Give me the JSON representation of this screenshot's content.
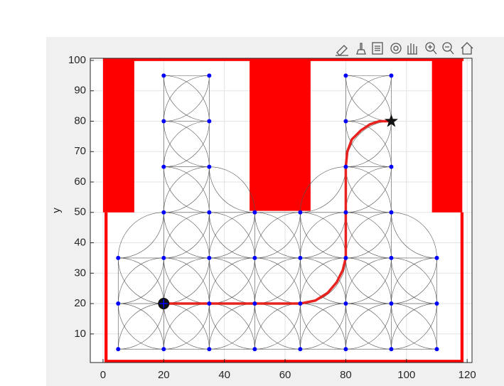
{
  "chart_data": {
    "type": "roadmap",
    "ylabel": "y",
    "xlim": [
      -4.2,
      121.6
    ],
    "ylim": [
      0.6,
      100.7
    ],
    "xticks": [
      0,
      20,
      40,
      60,
      80,
      100,
      120
    ],
    "yticks": [
      10,
      20,
      30,
      40,
      50,
      60,
      70,
      80,
      90,
      100
    ],
    "grid": true,
    "obstacle_color": "#ff0000",
    "obstacles": [
      [
        0,
        50,
        10.3,
        100.7
      ],
      [
        48.3,
        50.5,
        68.4,
        100.7
      ],
      [
        108.4,
        50,
        118.4,
        100.7
      ],
      [
        0.5,
        0.6,
        1.5,
        50
      ],
      [
        0.5,
        0.6,
        118.8,
        1.5
      ],
      [
        117.8,
        0.6,
        118.8,
        50
      ],
      [
        0,
        99.8,
        118.8,
        100.7
      ]
    ],
    "node_color": "#0000ff",
    "nodes": {
      "x": [
        5,
        20,
        35,
        50,
        65,
        80,
        95,
        110,
        5,
        20,
        35,
        50,
        65,
        80,
        95,
        110,
        5,
        20,
        35,
        50,
        65,
        80,
        95,
        110,
        20,
        35,
        50,
        65,
        80,
        95,
        20,
        35,
        80,
        95,
        20,
        35,
        80,
        95,
        20,
        35,
        80,
        95
      ],
      "y": [
        5,
        5,
        5,
        5,
        5,
        5,
        5,
        5,
        20,
        20,
        20,
        20,
        20,
        20,
        20,
        20,
        35,
        35,
        35,
        35,
        35,
        35,
        35,
        35,
        50,
        50,
        50,
        50,
        50,
        50,
        65,
        65,
        65,
        65,
        80,
        80,
        80,
        80,
        95,
        95,
        95,
        95
      ]
    },
    "path": {
      "color": "#e8231f",
      "x": [
        20,
        65,
        70,
        74,
        77,
        79,
        80,
        80,
        80.5,
        82,
        85,
        88,
        91,
        95
      ],
      "y": [
        20,
        20,
        21,
        23.5,
        27,
        31,
        35,
        65,
        70,
        74,
        77,
        79,
        80,
        80
      ]
    },
    "start": [
      20,
      20
    ],
    "goal": [
      95,
      80
    ]
  }
}
